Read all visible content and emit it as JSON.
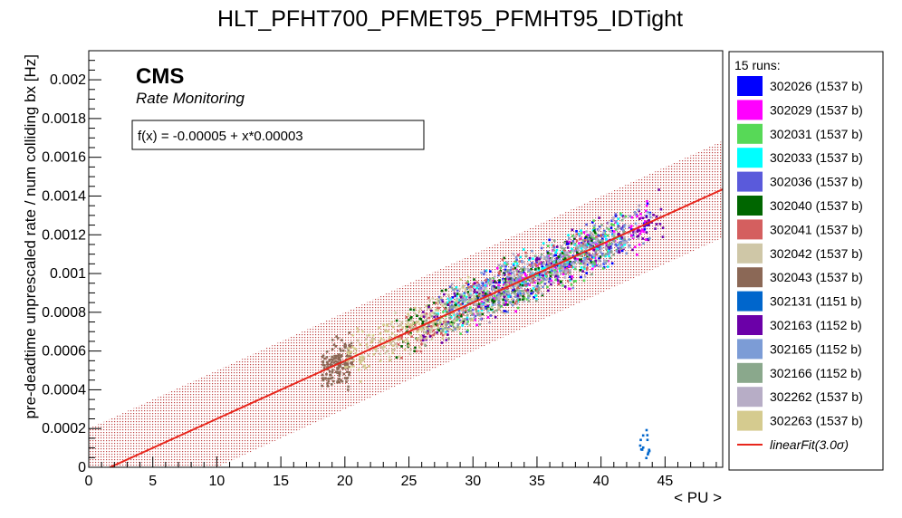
{
  "chart_data": {
    "type": "scatter",
    "title": "HLT_PFHT700_PFMET95_PFMHT95_IDTight",
    "xlabel": "< PU >",
    "ylabel": "pre-deadtime unprescaled rate / num colliding bx [Hz]",
    "xlim": [
      0,
      49.5
    ],
    "ylim": [
      0,
      0.00215
    ],
    "x_ticks": [
      0,
      5,
      10,
      15,
      20,
      25,
      30,
      35,
      40,
      45
    ],
    "x_tick_labels": [
      "0",
      "5",
      "10",
      "15",
      "20",
      "25",
      "30",
      "35",
      "40",
      "45"
    ],
    "y_ticks": [
      0,
      0.0002,
      0.0004,
      0.0006,
      0.0008,
      0.001,
      0.0012,
      0.0014,
      0.0016,
      0.0018,
      0.002
    ],
    "y_tick_labels": [
      "0",
      "0.0002",
      "0.0004",
      "0.0006",
      "0.0008",
      "0.001",
      "0.0012",
      "0.0014",
      "0.0016",
      "0.0018",
      "0.002"
    ],
    "cms_label": "CMS",
    "cms_sublabel": "Rate Monitoring",
    "fit": {
      "formula_text": "f(x) = -0.00005 + x*0.00003",
      "intercept": -5e-05,
      "slope": 3e-05,
      "band_halfwidth": 0.00025,
      "color": "#e8261c",
      "legend_label": "linearFit(3.0σ)"
    },
    "legend_header": "15 runs:",
    "legend_position": "right",
    "series": [
      {
        "name": "302026 (1537 b)",
        "color": "#0000ff",
        "x_range": [
          28,
          44
        ]
      },
      {
        "name": "302029 (1537 b)",
        "color": "#ff00ff",
        "x_range": [
          30,
          44
        ]
      },
      {
        "name": "302031 (1537 b)",
        "color": "#57d957",
        "x_range": [
          27,
          42
        ]
      },
      {
        "name": "302033 (1537 b)",
        "color": "#00ffff",
        "x_range": [
          27,
          42
        ]
      },
      {
        "name": "302036 (1537 b)",
        "color": "#5a5adb",
        "x_range": [
          27,
          42
        ]
      },
      {
        "name": "302040 (1537 b)",
        "color": "#006600",
        "x_range": [
          24,
          40
        ]
      },
      {
        "name": "302041 (1537 b)",
        "color": "#d45f5f",
        "x_range": [
          24,
          40
        ]
      },
      {
        "name": "302042 (1537 b)",
        "color": "#cfc7a7",
        "x_range": [
          21,
          34
        ]
      },
      {
        "name": "302043 (1537 b)",
        "color": "#8b6856",
        "x_range": [
          18.2,
          20.6
        ]
      },
      {
        "name": "302131 (1151 b)",
        "color": "#0066cc",
        "x_range": [
          43,
          43.8
        ]
      },
      {
        "name": "302163 (1152 b)",
        "color": "#6b00a8",
        "x_range": [
          26,
          45
        ]
      },
      {
        "name": "302165 (1152 b)",
        "color": "#7c9cd6",
        "x_range": [
          28,
          44
        ]
      },
      {
        "name": "302166 (1152 b)",
        "color": "#8aa88c",
        "x_range": [
          26,
          42
        ]
      },
      {
        "name": "302262 (1537 b)",
        "color": "#b7adc6",
        "x_range": [
          28,
          43
        ]
      },
      {
        "name": "302263 (1537 b)",
        "color": "#d5cb8f",
        "x_range": [
          20,
          30
        ]
      }
    ]
  }
}
